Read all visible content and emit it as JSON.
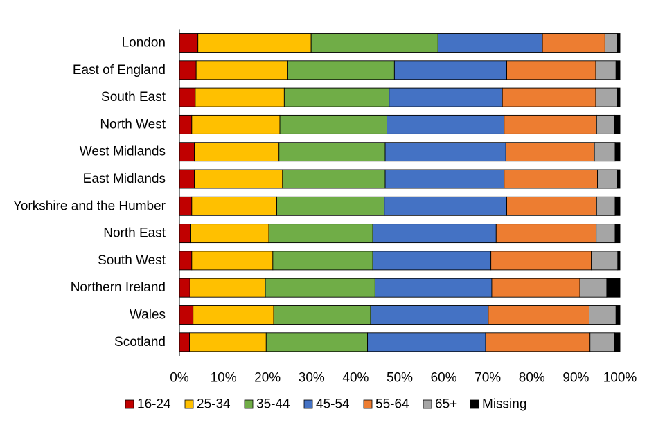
{
  "chart_data": {
    "type": "bar",
    "orientation": "horizontal",
    "stacked": true,
    "normalized": true,
    "title": "",
    "xlabel": "",
    "ylabel": "",
    "xlim": [
      0,
      100
    ],
    "grid": false,
    "legend_position": "bottom",
    "categories": [
      "London",
      "East of England",
      "South East",
      "North West",
      "West Midlands",
      "East Midlands",
      "Yorkshire and the Humber",
      "North East",
      "South West",
      "Northern Ireland",
      "Wales",
      "Scotland"
    ],
    "x_ticks": [
      "0%",
      "10%",
      "20%",
      "30%",
      "40%",
      "50%",
      "60%",
      "70%",
      "80%",
      "90%",
      "100%"
    ],
    "series": [
      {
        "name": "16-24",
        "color": "#C00000",
        "values": [
          4.2,
          3.8,
          3.6,
          2.8,
          3.4,
          3.4,
          2.8,
          2.6,
          2.8,
          2.4,
          3.1,
          2.3
        ]
      },
      {
        "name": "25-34",
        "color": "#FFC000",
        "values": [
          25.7,
          20.8,
          20.2,
          20.0,
          19.2,
          20.0,
          19.3,
          17.7,
          18.4,
          17.1,
          18.3,
          17.4
        ]
      },
      {
        "name": "35-44",
        "color": "#70AD47",
        "values": [
          28.8,
          24.2,
          23.8,
          24.3,
          24.1,
          23.3,
          24.4,
          23.6,
          22.7,
          24.9,
          22.0,
          23.0
        ]
      },
      {
        "name": "45-54",
        "color": "#4472C4",
        "values": [
          23.7,
          25.5,
          25.7,
          26.6,
          27.4,
          27.0,
          27.8,
          28.0,
          26.8,
          26.5,
          26.7,
          26.8
        ]
      },
      {
        "name": "55-64",
        "color": "#ED7D31",
        "values": [
          14.2,
          20.2,
          21.2,
          21.0,
          20.1,
          21.2,
          20.4,
          22.7,
          22.8,
          20.0,
          22.9,
          23.7
        ]
      },
      {
        "name": "65+",
        "color": "#A5A5A5",
        "values": [
          2.8,
          4.6,
          4.9,
          4.1,
          4.7,
          4.5,
          4.2,
          4.3,
          6.0,
          6.1,
          6.1,
          5.6
        ]
      },
      {
        "name": "Missing",
        "color": "#000000",
        "values": [
          0.6,
          0.9,
          0.6,
          1.2,
          1.1,
          0.6,
          1.1,
          1.1,
          0.5,
          3.0,
          0.9,
          1.2
        ]
      }
    ]
  }
}
